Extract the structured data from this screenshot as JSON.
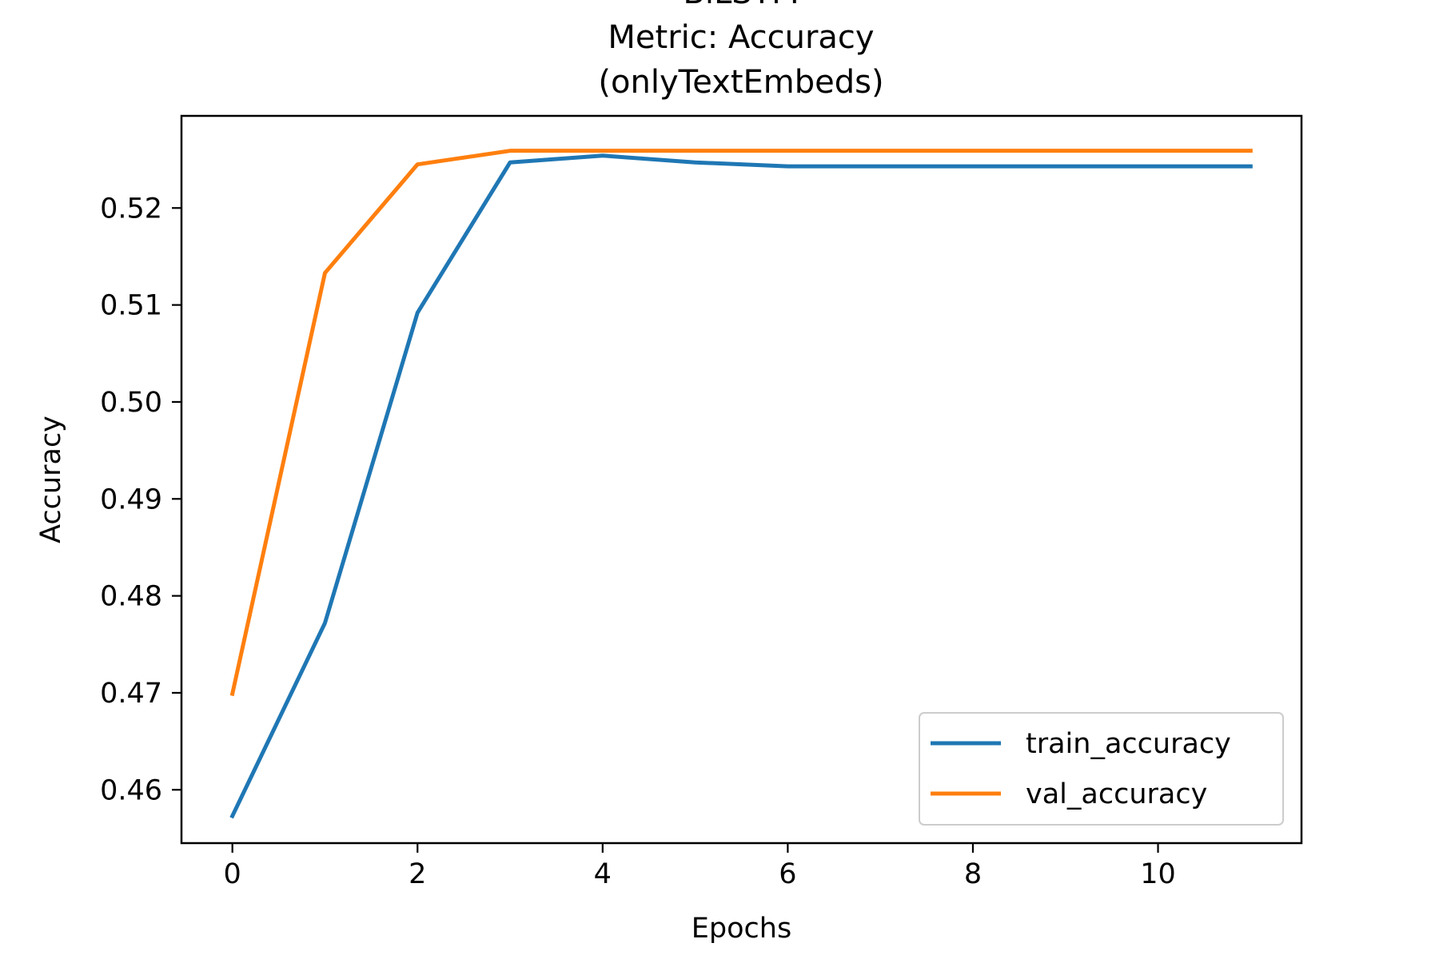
{
  "chart_data": {
    "type": "line",
    "title_lines": [
      "BiLSTM",
      "Metric: Accuracy",
      "(onlyTextEmbeds)"
    ],
    "xlabel": "Epochs",
    "ylabel": "Accuracy",
    "x": [
      0,
      1,
      2,
      3,
      4,
      5,
      6,
      7,
      8,
      9,
      10,
      11
    ],
    "xlim": [
      -0.55,
      11.55
    ],
    "ylim": [
      0.4545,
      0.5295
    ],
    "xticks": [
      0,
      2,
      4,
      6,
      8,
      10
    ],
    "xtick_labels": [
      "0",
      "2",
      "4",
      "6",
      "8",
      "10"
    ],
    "yticks": [
      0.46,
      0.47,
      0.48,
      0.49,
      0.5,
      0.51,
      0.52
    ],
    "ytick_labels": [
      "0.46",
      "0.47",
      "0.48",
      "0.49",
      "0.50",
      "0.51",
      "0.52"
    ],
    "grid": false,
    "legend_position": "lower-right",
    "series": [
      {
        "name": "train_accuracy",
        "color": "#1f77b4",
        "values": [
          0.4573,
          0.4772,
          0.5092,
          0.5247,
          0.5254,
          0.5247,
          0.5243,
          0.5243,
          0.5243,
          0.5243,
          0.5243,
          0.5243
        ]
      },
      {
        "name": "val_accuracy",
        "color": "#ff7f0e",
        "values": [
          0.4699,
          0.5133,
          0.5245,
          0.5259,
          0.5259,
          0.5259,
          0.5259,
          0.5259,
          0.5259,
          0.5259,
          0.5259,
          0.5259
        ]
      }
    ]
  }
}
